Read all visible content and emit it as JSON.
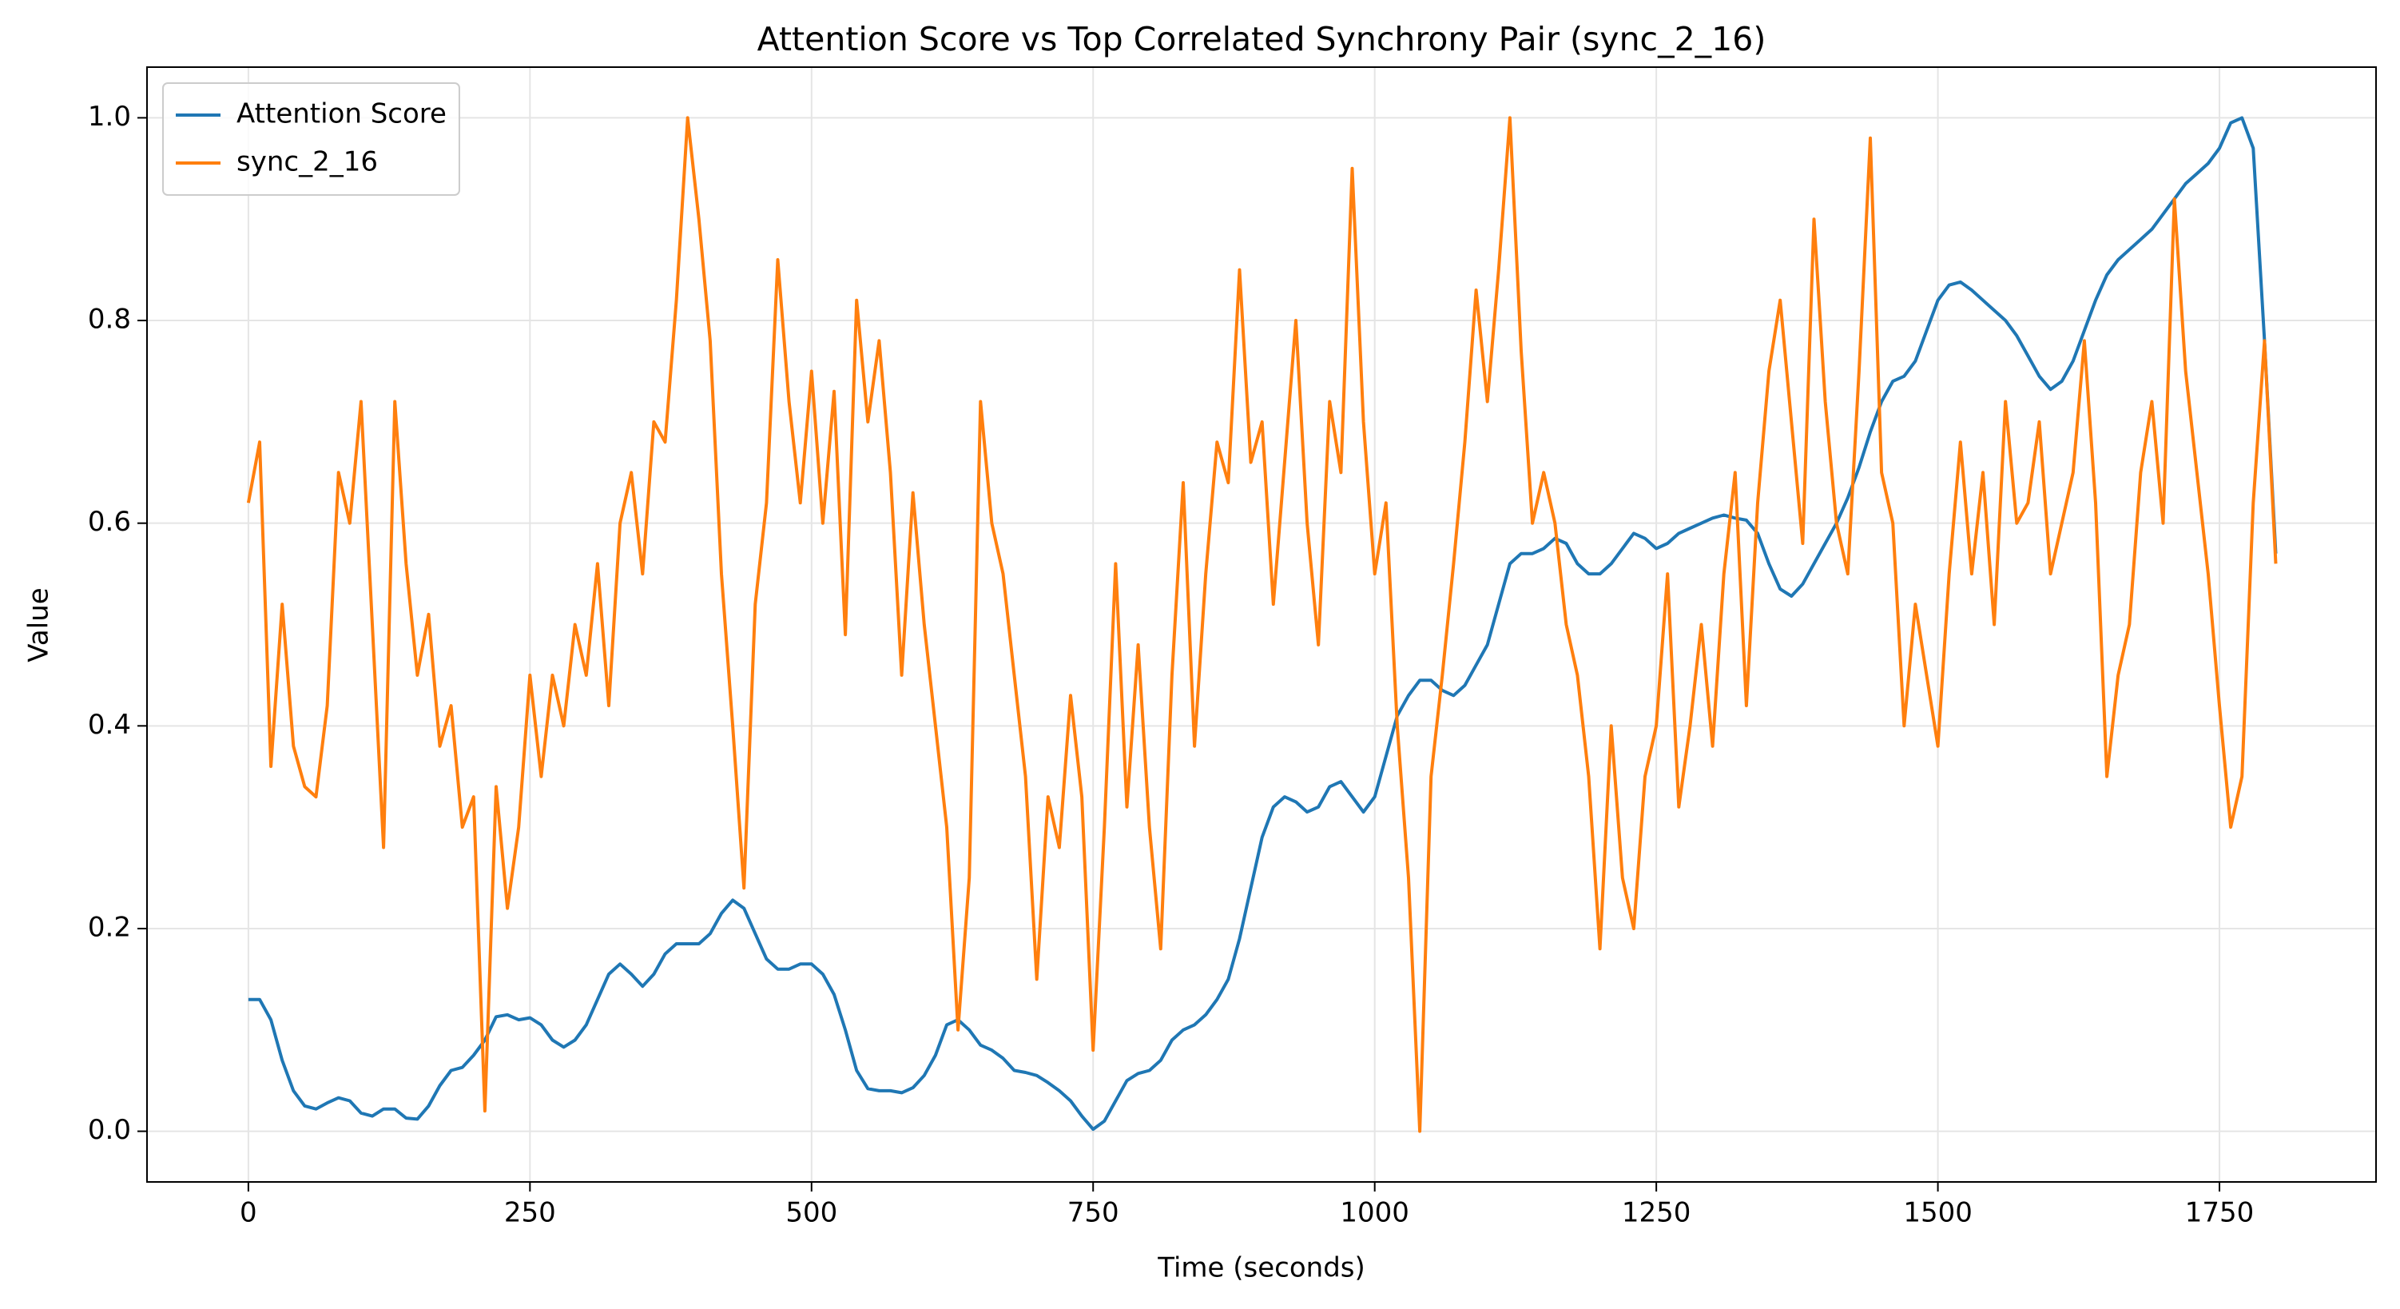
{
  "chart_data": {
    "type": "line",
    "title": "Attention Score vs Top Correlated Synchrony Pair (sync_2_16)",
    "x_label": "Time (seconds)",
    "y_label": "Value",
    "x": [
      0,
      10,
      20,
      30,
      40,
      50,
      60,
      70,
      80,
      90,
      100,
      110,
      120,
      130,
      140,
      150,
      160,
      170,
      180,
      190,
      200,
      210,
      220,
      230,
      240,
      250,
      260,
      270,
      280,
      290,
      300,
      310,
      320,
      330,
      340,
      350,
      360,
      370,
      380,
      390,
      400,
      410,
      420,
      430,
      440,
      450,
      460,
      470,
      480,
      490,
      500,
      510,
      520,
      530,
      540,
      550,
      560,
      570,
      580,
      590,
      600,
      610,
      620,
      630,
      640,
      650,
      660,
      670,
      680,
      690,
      700,
      710,
      720,
      730,
      740,
      750,
      760,
      770,
      780,
      790,
      800,
      810,
      820,
      830,
      840,
      850,
      860,
      870,
      880,
      890,
      900,
      910,
      920,
      930,
      940,
      950,
      960,
      970,
      980,
      990,
      1000,
      1010,
      1020,
      1030,
      1040,
      1050,
      1060,
      1070,
      1080,
      1090,
      1100,
      1110,
      1120,
      1130,
      1140,
      1150,
      1160,
      1170,
      1180,
      1190,
      1200,
      1210,
      1220,
      1230,
      1240,
      1250,
      1260,
      1270,
      1280,
      1290,
      1300,
      1310,
      1320,
      1330,
      1340,
      1350,
      1360,
      1370,
      1380,
      1390,
      1400,
      1410,
      1420,
      1430,
      1440,
      1450,
      1460,
      1470,
      1480,
      1490,
      1500,
      1510,
      1520,
      1530,
      1540,
      1550,
      1560,
      1570,
      1580,
      1590,
      1600,
      1610,
      1620,
      1630,
      1640,
      1650,
      1660,
      1670,
      1680,
      1690,
      1700,
      1710,
      1720,
      1730,
      1740,
      1750,
      1760,
      1770,
      1780,
      1790,
      1800
    ],
    "series": [
      {
        "name": "Attention Score",
        "color": "#1f77b4",
        "values": [
          0.13,
          0.13,
          0.11,
          0.07,
          0.04,
          0.025,
          0.022,
          0.028,
          0.033,
          0.03,
          0.018,
          0.015,
          0.022,
          0.022,
          0.013,
          0.012,
          0.025,
          0.045,
          0.06,
          0.063,
          0.075,
          0.09,
          0.113,
          0.115,
          0.11,
          0.112,
          0.105,
          0.09,
          0.083,
          0.09,
          0.105,
          0.13,
          0.155,
          0.165,
          0.155,
          0.143,
          0.155,
          0.175,
          0.185,
          0.185,
          0.185,
          0.195,
          0.215,
          0.228,
          0.22,
          0.195,
          0.17,
          0.16,
          0.16,
          0.165,
          0.165,
          0.155,
          0.135,
          0.1,
          0.06,
          0.042,
          0.04,
          0.04,
          0.038,
          0.043,
          0.055,
          0.075,
          0.105,
          0.11,
          0.1,
          0.085,
          0.08,
          0.072,
          0.06,
          0.058,
          0.055,
          0.048,
          0.04,
          0.03,
          0.015,
          0.002,
          0.01,
          0.03,
          0.05,
          0.057,
          0.06,
          0.07,
          0.09,
          0.1,
          0.105,
          0.115,
          0.13,
          0.15,
          0.19,
          0.24,
          0.29,
          0.32,
          0.33,
          0.325,
          0.315,
          0.32,
          0.34,
          0.345,
          0.33,
          0.315,
          0.33,
          0.37,
          0.41,
          0.43,
          0.445,
          0.445,
          0.435,
          0.43,
          0.44,
          0.46,
          0.48,
          0.52,
          0.56,
          0.57,
          0.57,
          0.575,
          0.585,
          0.58,
          0.56,
          0.55,
          0.55,
          0.56,
          0.575,
          0.59,
          0.585,
          0.575,
          0.58,
          0.59,
          0.595,
          0.6,
          0.605,
          0.608,
          0.605,
          0.603,
          0.59,
          0.56,
          0.535,
          0.528,
          0.54,
          0.56,
          0.58,
          0.6,
          0.625,
          0.655,
          0.69,
          0.72,
          0.74,
          0.745,
          0.76,
          0.79,
          0.82,
          0.835,
          0.838,
          0.83,
          0.82,
          0.81,
          0.8,
          0.785,
          0.765,
          0.745,
          0.732,
          0.74,
          0.76,
          0.79,
          0.82,
          0.845,
          0.86,
          0.87,
          0.88,
          0.89,
          0.905,
          0.92,
          0.935,
          0.945,
          0.955,
          0.97,
          0.995,
          1.0,
          0.97,
          0.78,
          0.57
        ]
      },
      {
        "name": "sync_2_16",
        "color": "#ff7f0e",
        "values": [
          0.62,
          0.68,
          0.36,
          0.52,
          0.38,
          0.34,
          0.33,
          0.42,
          0.65,
          0.6,
          0.72,
          0.5,
          0.28,
          0.72,
          0.56,
          0.45,
          0.51,
          0.38,
          0.42,
          0.3,
          0.33,
          0.02,
          0.34,
          0.22,
          0.3,
          0.45,
          0.35,
          0.45,
          0.4,
          0.5,
          0.45,
          0.56,
          0.42,
          0.6,
          0.65,
          0.55,
          0.7,
          0.68,
          0.82,
          1.0,
          0.9,
          0.78,
          0.55,
          0.4,
          0.24,
          0.52,
          0.62,
          0.86,
          0.72,
          0.62,
          0.75,
          0.6,
          0.73,
          0.49,
          0.82,
          0.7,
          0.78,
          0.65,
          0.45,
          0.63,
          0.5,
          0.4,
          0.3,
          0.1,
          0.25,
          0.72,
          0.6,
          0.55,
          0.45,
          0.35,
          0.15,
          0.33,
          0.28,
          0.43,
          0.33,
          0.08,
          0.3,
          0.56,
          0.32,
          0.48,
          0.3,
          0.18,
          0.45,
          0.64,
          0.38,
          0.55,
          0.68,
          0.64,
          0.85,
          0.66,
          0.7,
          0.52,
          0.66,
          0.8,
          0.6,
          0.48,
          0.72,
          0.65,
          0.95,
          0.7,
          0.55,
          0.62,
          0.4,
          0.25,
          0.0,
          0.35,
          0.45,
          0.56,
          0.68,
          0.83,
          0.72,
          0.85,
          1.0,
          0.77,
          0.6,
          0.65,
          0.6,
          0.5,
          0.45,
          0.35,
          0.18,
          0.4,
          0.25,
          0.2,
          0.35,
          0.4,
          0.55,
          0.32,
          0.4,
          0.5,
          0.38,
          0.55,
          0.65,
          0.42,
          0.62,
          0.75,
          0.82,
          0.7,
          0.58,
          0.9,
          0.72,
          0.6,
          0.55,
          0.75,
          0.98,
          0.65,
          0.6,
          0.4,
          0.52,
          0.45,
          0.38,
          0.55,
          0.68,
          0.55,
          0.65,
          0.5,
          0.72,
          0.6,
          0.62,
          0.7,
          0.55,
          0.6,
          0.65,
          0.78,
          0.62,
          0.35,
          0.45,
          0.5,
          0.65,
          0.72,
          0.6,
          0.92,
          0.75,
          0.65,
          0.55,
          0.42,
          0.3,
          0.35,
          0.62,
          0.78,
          0.56
        ]
      }
    ],
    "xlim": [
      -90,
      1889
    ],
    "xticks": [
      0,
      250,
      500,
      750,
      1000,
      1250,
      1500,
      1750
    ],
    "ylim": [
      -0.05,
      1.05
    ],
    "yticks": [
      {
        "value": 0,
        "label": "0.0"
      },
      0.2,
      0.4,
      0.6,
      0.8,
      {
        "value": 1,
        "label": "1.0"
      }
    ],
    "grid": true,
    "legend": "upper left"
  }
}
